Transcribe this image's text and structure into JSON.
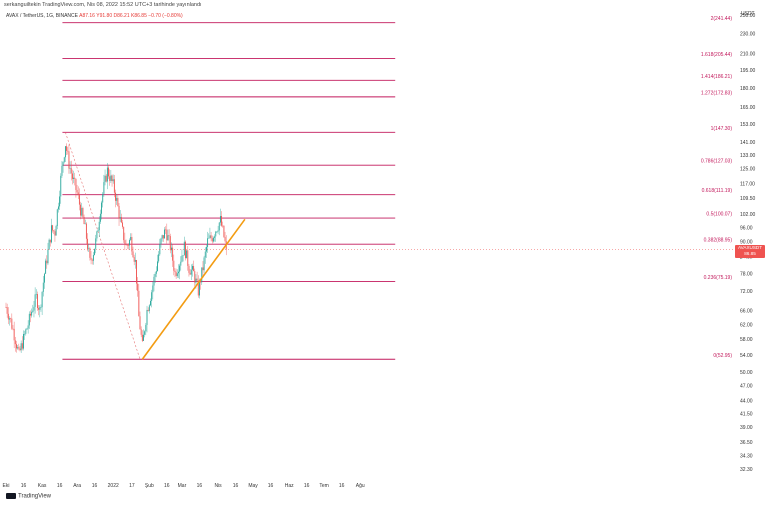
{
  "header": {
    "publisher_line": "serkanguiltekin TradingView.com, Nis 08, 2022 15:52 UTC+3 tarihinde yayınlandı",
    "symbol_line": "AVAX / TetherUS, 1G, BINANCE",
    "ohlc": "A87.16 Y91.80 D86.21 K86.85 −0.70 (−0.80%)"
  },
  "price_axis": {
    "unit": "USDT",
    "ticks": [
      "250.00",
      "230.00",
      "210.00",
      "195.00",
      "180.00",
      "165.00",
      "153.00",
      "141.00",
      "133.00",
      "125.00",
      "117.00",
      "109.50",
      "102.00",
      "96.00",
      "90.00",
      "84.00",
      "78.00",
      "72.00",
      "66.00",
      "62.00",
      "58.00",
      "54.00",
      "50.00",
      "47.00",
      "44.00",
      "41.50",
      "39.00",
      "36.50",
      "34.30",
      "32.30"
    ],
    "current_price": "86.85",
    "current_symbol": "AVAXUSDT",
    "countdown": "11:07:09"
  },
  "time_axis": {
    "ticks": [
      "Eki",
      "16",
      "Kas",
      "16",
      "Ara",
      "16",
      "2022",
      "17",
      "Şub",
      "16",
      "Mar",
      "16",
      "Nis",
      "16",
      "May",
      "16",
      "Haz",
      "16",
      "Tem",
      "16",
      "Ağu"
    ]
  },
  "fib_levels": [
    {
      "label": "2(241.44)",
      "value": 241.44
    },
    {
      "label": "1.618(205.44)",
      "value": 205.44
    },
    {
      "label": "1.414(186.21)",
      "value": 186.21
    },
    {
      "label": "1.272(172.83)",
      "value": 172.83
    },
    {
      "label": "1(147.30)",
      "value": 147.3
    },
    {
      "label": "0.786(127.03)",
      "value": 127.03
    },
    {
      "label": "0.618(111.19)",
      "value": 111.19
    },
    {
      "label": "0.5(100.07)",
      "value": 100.07
    },
    {
      "label": "0.382(88.95)",
      "value": 88.95
    },
    {
      "label": "0.236(75.19)",
      "value": 75.19
    },
    {
      "label": "0(52.95)",
      "value": 52.95
    }
  ],
  "chart_data": {
    "type": "line",
    "title": "AVAX / TetherUS, 1G, BINANCE",
    "ylabel": "USDT",
    "y_scale": "log",
    "x_range": [
      "Eki",
      "Ağu"
    ],
    "ylim": [
      31,
      258
    ],
    "current_price": 86.85,
    "trendline": {
      "points": [
        [
          "Oca 26",
          52.95
        ],
        [
          "Nis 24",
          99.5
        ]
      ],
      "color": "#f39c12"
    },
    "fib_swing": {
      "from": [
        "Kas 21",
        147.3
      ],
      "to": [
        "Oca 24",
        52.95
      ]
    },
    "price_path": [
      [
        "Eki 01",
        67
      ],
      [
        "Eki 05",
        63
      ],
      [
        "Eki 09",
        58
      ],
      [
        "Eki 12",
        54
      ],
      [
        "Eki 16",
        58
      ],
      [
        "Eki 20",
        62
      ],
      [
        "Eki 24",
        67
      ],
      [
        "Eki 27",
        70
      ],
      [
        "Eki 30",
        66
      ],
      [
        "Kas 03",
        78
      ],
      [
        "Kas 06",
        86
      ],
      [
        "Kas 09",
        95
      ],
      [
        "Kas 12",
        94
      ],
      [
        "Kas 15",
        108
      ],
      [
        "Kas 18",
        125
      ],
      [
        "Kas 21",
        140
      ],
      [
        "Kas 24",
        128
      ],
      [
        "Kas 27",
        120
      ],
      [
        "Ara 01",
        112
      ],
      [
        "Ara 04",
        104
      ],
      [
        "Ara 08",
        95
      ],
      [
        "Ara 12",
        82
      ],
      [
        "Ara 15",
        86
      ],
      [
        "Ara 18",
        92
      ],
      [
        "Ara 21",
        105
      ],
      [
        "Ara 24",
        115
      ],
      [
        "Ara 27",
        124
      ],
      [
        "Oca 01",
        116
      ],
      [
        "Oca 04",
        108
      ],
      [
        "Oca 08",
        96
      ],
      [
        "Oca 12",
        88
      ],
      [
        "Oca 16",
        91
      ],
      [
        "Oca 20",
        82
      ],
      [
        "Oca 23",
        64
      ],
      [
        "Oca 26",
        56
      ],
      [
        "Oca 30",
        66
      ],
      [
        "Şub 03",
        72
      ],
      [
        "Şub 07",
        80
      ],
      [
        "Şub 11",
        90
      ],
      [
        "Şub 15",
        95
      ],
      [
        "Şub 19",
        88
      ],
      [
        "Şub 23",
        78
      ],
      [
        "Şub 27",
        82
      ],
      [
        "Mar 03",
        88
      ],
      [
        "Mar 07",
        80
      ],
      [
        "Mar 11",
        78
      ],
      [
        "Mar 15",
        72
      ],
      [
        "Mar 19",
        80
      ],
      [
        "Mar 23",
        90
      ],
      [
        "Mar 27",
        92
      ],
      [
        "Mar 31",
        96
      ],
      [
        "Nis 03",
        99
      ],
      [
        "Nis 06",
        92
      ],
      [
        "Nis 08",
        86.85
      ]
    ]
  }
}
